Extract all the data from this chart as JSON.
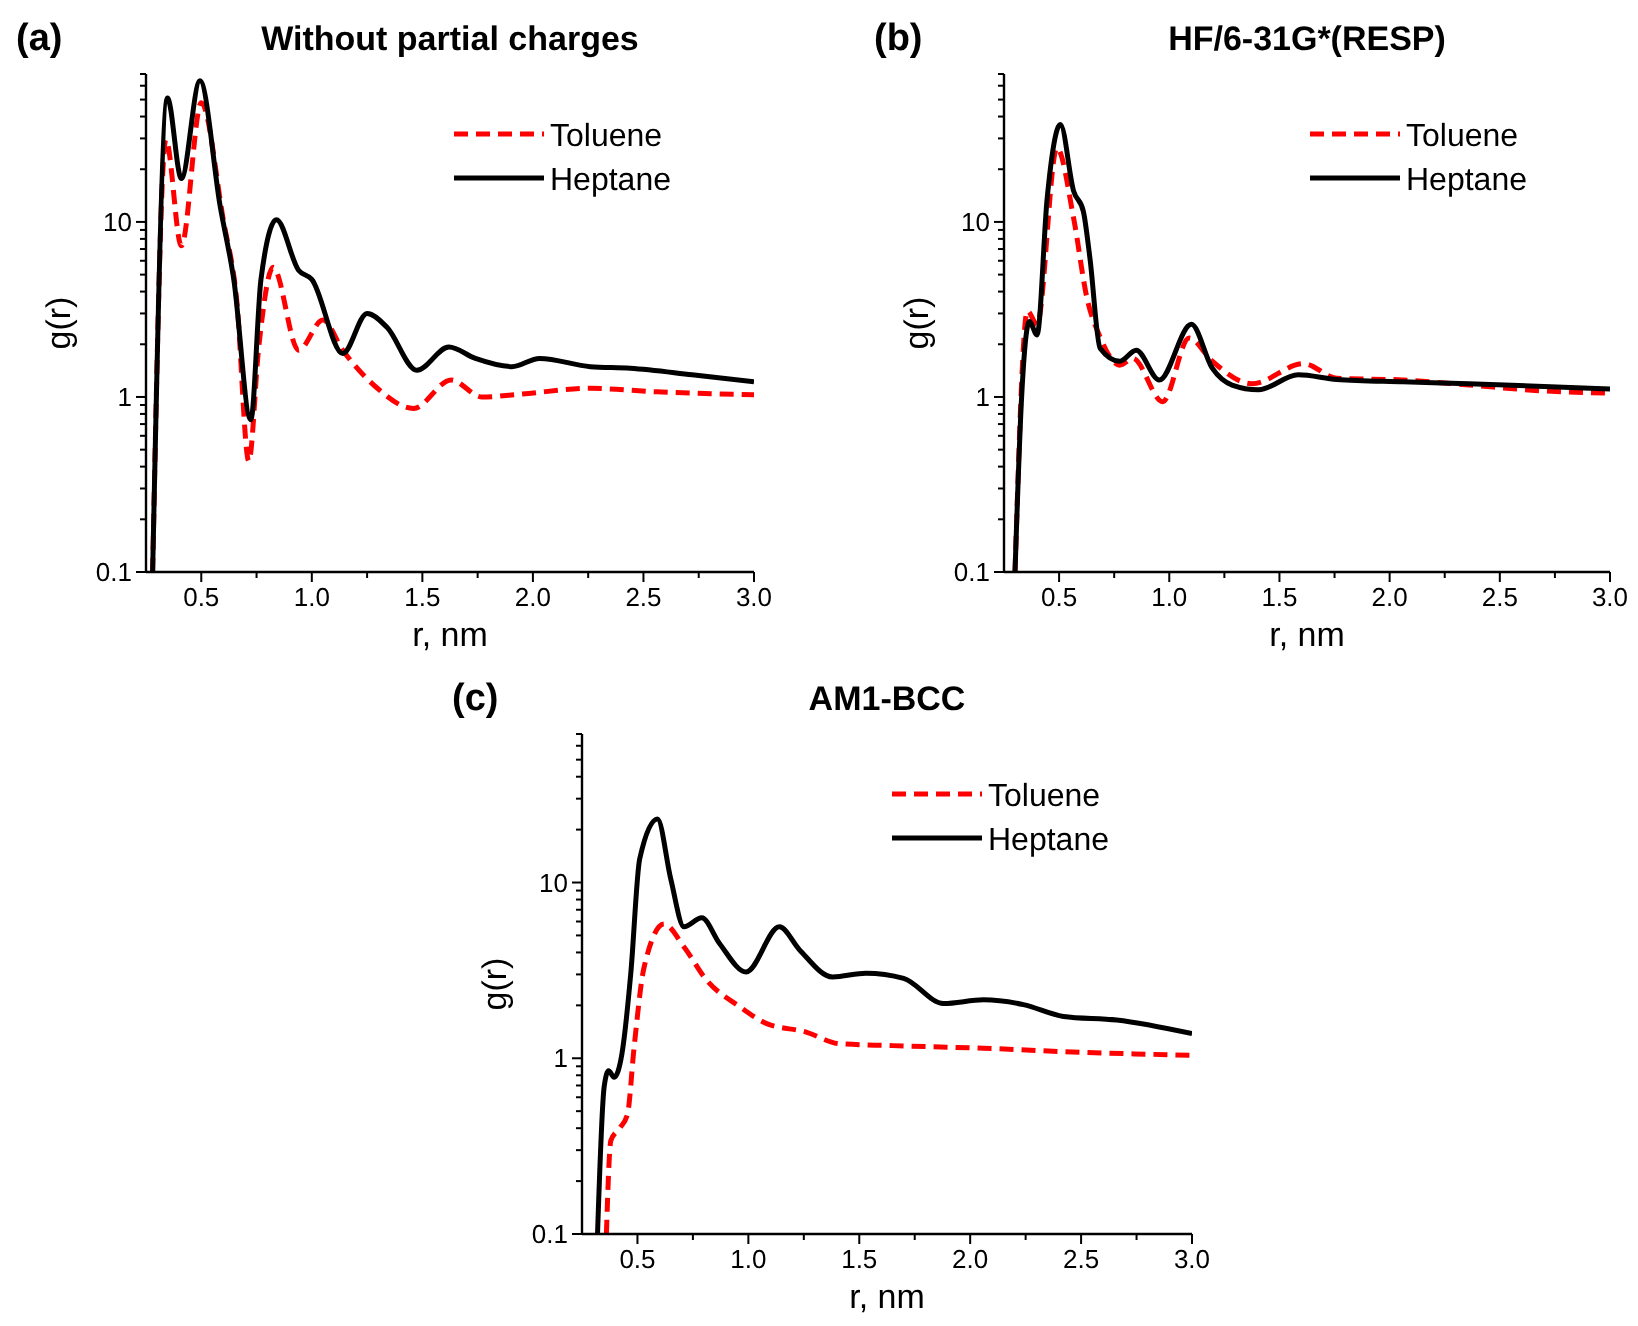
{
  "chart_data": [
    {
      "type": "line",
      "title": "Without partial charges",
      "annotations": [
        "(a)"
      ],
      "xlabel": "r, nm",
      "ylabel": "g(r)",
      "log": "y",
      "legend": "top right",
      "xlim": [
        0.25,
        3
      ],
      "ylim": [
        0.1,
        70
      ],
      "xticks": [
        0.5,
        {
          "value": 0.75,
          "label": null
        },
        {
          "value": 1,
          "label": "1.0"
        },
        {
          "value": 1.25,
          "label": null
        },
        1.5,
        {
          "value": 1.75,
          "label": null
        },
        {
          "value": 2,
          "label": "2.0"
        },
        {
          "value": 2.25,
          "label": null
        },
        2.5,
        {
          "value": 2.75,
          "label": null
        },
        {
          "value": 3,
          "label": "3.0"
        }
      ],
      "yticks": [
        0.1,
        {
          "value": 0.2,
          "label": null
        },
        {
          "value": 0.3,
          "label": null
        },
        {
          "value": 0.4,
          "label": null
        },
        {
          "value": 0.5,
          "label": null
        },
        {
          "value": 0.6,
          "label": null
        },
        {
          "value": 0.7,
          "label": null
        },
        {
          "value": 0.8,
          "label": null
        },
        {
          "value": 0.9,
          "label": null
        },
        1,
        {
          "value": 2,
          "label": null
        },
        {
          "value": 3,
          "label": null
        },
        {
          "value": 4,
          "label": null
        },
        {
          "value": 5,
          "label": null
        },
        {
          "value": 6,
          "label": null
        },
        {
          "value": 7,
          "label": null
        },
        {
          "value": 8,
          "label": null
        },
        {
          "value": 9,
          "label": null
        },
        10,
        {
          "value": 20,
          "label": null
        },
        {
          "value": 30,
          "label": null
        },
        {
          "value": 40,
          "label": null
        },
        {
          "value": 50,
          "label": null
        },
        {
          "value": 60,
          "label": null
        },
        {
          "value": 70,
          "label": null
        }
      ],
      "series": [
        {
          "name": "Toluene",
          "color": "#ff0000",
          "line_style": "dashed",
          "x": [
            0.28,
            0.34,
            0.41,
            0.5,
            0.6,
            0.66,
            0.715,
            0.76,
            0.825,
            0.94,
            1.05,
            1.14,
            1.29,
            1.46,
            1.63,
            1.77,
            1.95,
            2.26,
            2.56,
            3.0
          ],
          "values": [
            0.1,
            29.5,
            7.3,
            48,
            10.2,
            3.6,
            0.43,
            1.93,
            5.5,
            1.85,
            2.75,
            1.85,
            1.14,
            0.86,
            1.25,
            1.0,
            1.04,
            1.12,
            1.07,
            1.03
          ]
        },
        {
          "name": "Heptane",
          "color": "#000000",
          "line_style": "solid",
          "x": [
            0.28,
            0.347,
            0.41,
            0.494,
            0.586,
            0.647,
            0.724,
            0.77,
            0.84,
            0.94,
            1.0,
            1.14,
            1.25,
            1.34,
            1.475,
            1.62,
            1.74,
            1.905,
            2.03,
            2.26,
            2.44,
            2.72,
            3.0
          ],
          "values": [
            0.1,
            51,
            17.7,
            64,
            12.2,
            4.7,
            0.74,
            4.7,
            10.3,
            5.3,
            4.7,
            1.77,
            3.0,
            2.5,
            1.42,
            1.93,
            1.66,
            1.49,
            1.66,
            1.49,
            1.46,
            1.34,
            1.22
          ]
        }
      ]
    },
    {
      "type": "line",
      "title": "HF/6-31G*(RESP)",
      "annotations": [
        "(b)"
      ],
      "xlabel": "r, nm",
      "ylabel": "g(r)",
      "log": "y",
      "legend": "top right",
      "xlim": [
        0.25,
        3
      ],
      "ylim": [
        0.1,
        70
      ],
      "xticks": [
        0.5,
        {
          "value": 0.75,
          "label": null
        },
        {
          "value": 1,
          "label": "1.0"
        },
        {
          "value": 1.25,
          "label": null
        },
        1.5,
        {
          "value": 1.75,
          "label": null
        },
        {
          "value": 2,
          "label": "2.0"
        },
        {
          "value": 2.25,
          "label": null
        },
        2.5,
        {
          "value": 2.75,
          "label": null
        },
        {
          "value": 3,
          "label": "3.0"
        }
      ],
      "yticks": [
        0.1,
        {
          "value": 0.2,
          "label": null
        },
        {
          "value": 0.3,
          "label": null
        },
        {
          "value": 0.4,
          "label": null
        },
        {
          "value": 0.5,
          "label": null
        },
        {
          "value": 0.6,
          "label": null
        },
        {
          "value": 0.7,
          "label": null
        },
        {
          "value": 0.8,
          "label": null
        },
        {
          "value": 0.9,
          "label": null
        },
        1,
        {
          "value": 2,
          "label": null
        },
        {
          "value": 3,
          "label": null
        },
        {
          "value": 4,
          "label": null
        },
        {
          "value": 5,
          "label": null
        },
        {
          "value": 6,
          "label": null
        },
        {
          "value": 7,
          "label": null
        },
        {
          "value": 8,
          "label": null
        },
        {
          "value": 9,
          "label": null
        },
        10,
        {
          "value": 20,
          "label": null
        },
        {
          "value": 30,
          "label": null
        },
        {
          "value": 40,
          "label": null
        },
        {
          "value": 50,
          "label": null
        },
        {
          "value": 60,
          "label": null
        },
        {
          "value": 70,
          "label": null
        }
      ],
      "series": [
        {
          "name": "Toluene",
          "color": "#ff0000",
          "line_style": "dashed",
          "x": [
            0.3,
            0.356,
            0.4,
            0.49,
            0.566,
            0.626,
            0.686,
            0.775,
            0.835,
            0.97,
            1.09,
            1.195,
            1.375,
            1.61,
            1.76,
            2.06,
            2.36,
            2.66,
            3.0
          ],
          "values": [
            0.1,
            3.1,
            2.6,
            26.5,
            10.5,
            3.7,
            2.2,
            1.52,
            1.66,
            0.94,
            2.17,
            1.6,
            1.19,
            1.55,
            1.28,
            1.25,
            1.17,
            1.09,
            1.05
          ]
        },
        {
          "name": "Heptane",
          "color": "#000000",
          "line_style": "solid",
          "x": [
            0.3,
            0.33,
            0.365,
            0.4,
            0.446,
            0.506,
            0.566,
            0.61,
            0.64,
            0.686,
            0.775,
            0.85,
            0.955,
            1.1,
            1.195,
            1.285,
            1.405,
            1.585,
            1.76,
            2.06,
            2.36,
            3.0
          ],
          "values": [
            0.1,
            1,
            2.7,
            2.26,
            13.7,
            36,
            15,
            11.5,
            6.2,
            1.9,
            1.6,
            1.85,
            1.25,
            2.6,
            1.46,
            1.17,
            1.1,
            1.34,
            1.26,
            1.22,
            1.19,
            1.11
          ]
        }
      ]
    },
    {
      "type": "line",
      "title": "AM1-BCC",
      "annotations": [
        "(c)"
      ],
      "xlabel": "r, nm",
      "ylabel": "g(r)",
      "log": "y",
      "legend": "top right",
      "xlim": [
        0.25,
        3
      ],
      "ylim": [
        0.1,
        70
      ],
      "xticks": [
        0.5,
        {
          "value": 0.75,
          "label": null
        },
        {
          "value": 1,
          "label": "1.0"
        },
        {
          "value": 1.25,
          "label": null
        },
        1.5,
        {
          "value": 1.75,
          "label": null
        },
        {
          "value": 2,
          "label": "2.0"
        },
        {
          "value": 2.25,
          "label": null
        },
        2.5,
        {
          "value": 2.75,
          "label": null
        },
        {
          "value": 3,
          "label": "3.0"
        }
      ],
      "yticks": [
        0.1,
        {
          "value": 0.2,
          "label": null
        },
        {
          "value": 0.3,
          "label": null
        },
        {
          "value": 0.4,
          "label": null
        },
        {
          "value": 0.5,
          "label": null
        },
        {
          "value": 0.6,
          "label": null
        },
        {
          "value": 0.7,
          "label": null
        },
        {
          "value": 0.8,
          "label": null
        },
        {
          "value": 0.9,
          "label": null
        },
        1,
        {
          "value": 2,
          "label": null
        },
        {
          "value": 3,
          "label": null
        },
        {
          "value": 4,
          "label": null
        },
        {
          "value": 5,
          "label": null
        },
        {
          "value": 6,
          "label": null
        },
        {
          "value": 7,
          "label": null
        },
        {
          "value": 8,
          "label": null
        },
        {
          "value": 9,
          "label": null
        },
        10,
        {
          "value": 20,
          "label": null
        },
        {
          "value": 30,
          "label": null
        },
        {
          "value": 40,
          "label": null
        },
        {
          "value": 50,
          "label": null
        },
        {
          "value": 60,
          "label": null
        },
        {
          "value": 70,
          "label": null
        }
      ],
      "series": [
        {
          "name": "Toluene",
          "color": "#ff0000",
          "line_style": "dashed",
          "x": [
            0.36,
            0.38,
            0.42,
            0.455,
            0.485,
            0.53,
            0.62,
            0.71,
            0.81,
            0.96,
            1.08,
            1.26,
            1.41,
            1.65,
            2.06,
            2.51,
            3.0
          ],
          "values": [
            0.1,
            0.34,
            0.4,
            0.48,
            1.16,
            3.3,
            5.8,
            4.3,
            2.8,
            1.97,
            1.58,
            1.41,
            1.21,
            1.18,
            1.14,
            1.08,
            1.04
          ]
        },
        {
          "name": "Heptane",
          "color": "#000000",
          "line_style": "solid",
          "x": [
            0.32,
            0.35,
            0.37,
            0.395,
            0.43,
            0.47,
            0.51,
            0.59,
            0.65,
            0.71,
            0.79,
            0.87,
            0.99,
            1.14,
            1.23,
            1.38,
            1.53,
            1.7,
            1.88,
            2.06,
            2.24,
            2.42,
            2.66,
            3.0
          ],
          "values": [
            0.1,
            0.69,
            0.85,
            0.78,
            1.06,
            3.05,
            13.6,
            23,
            10.5,
            5.6,
            6.3,
            4.5,
            3.1,
            5.6,
            4.15,
            2.9,
            3.05,
            2.85,
            2.05,
            2.15,
            2.02,
            1.73,
            1.65,
            1.38
          ]
        }
      ]
    }
  ]
}
